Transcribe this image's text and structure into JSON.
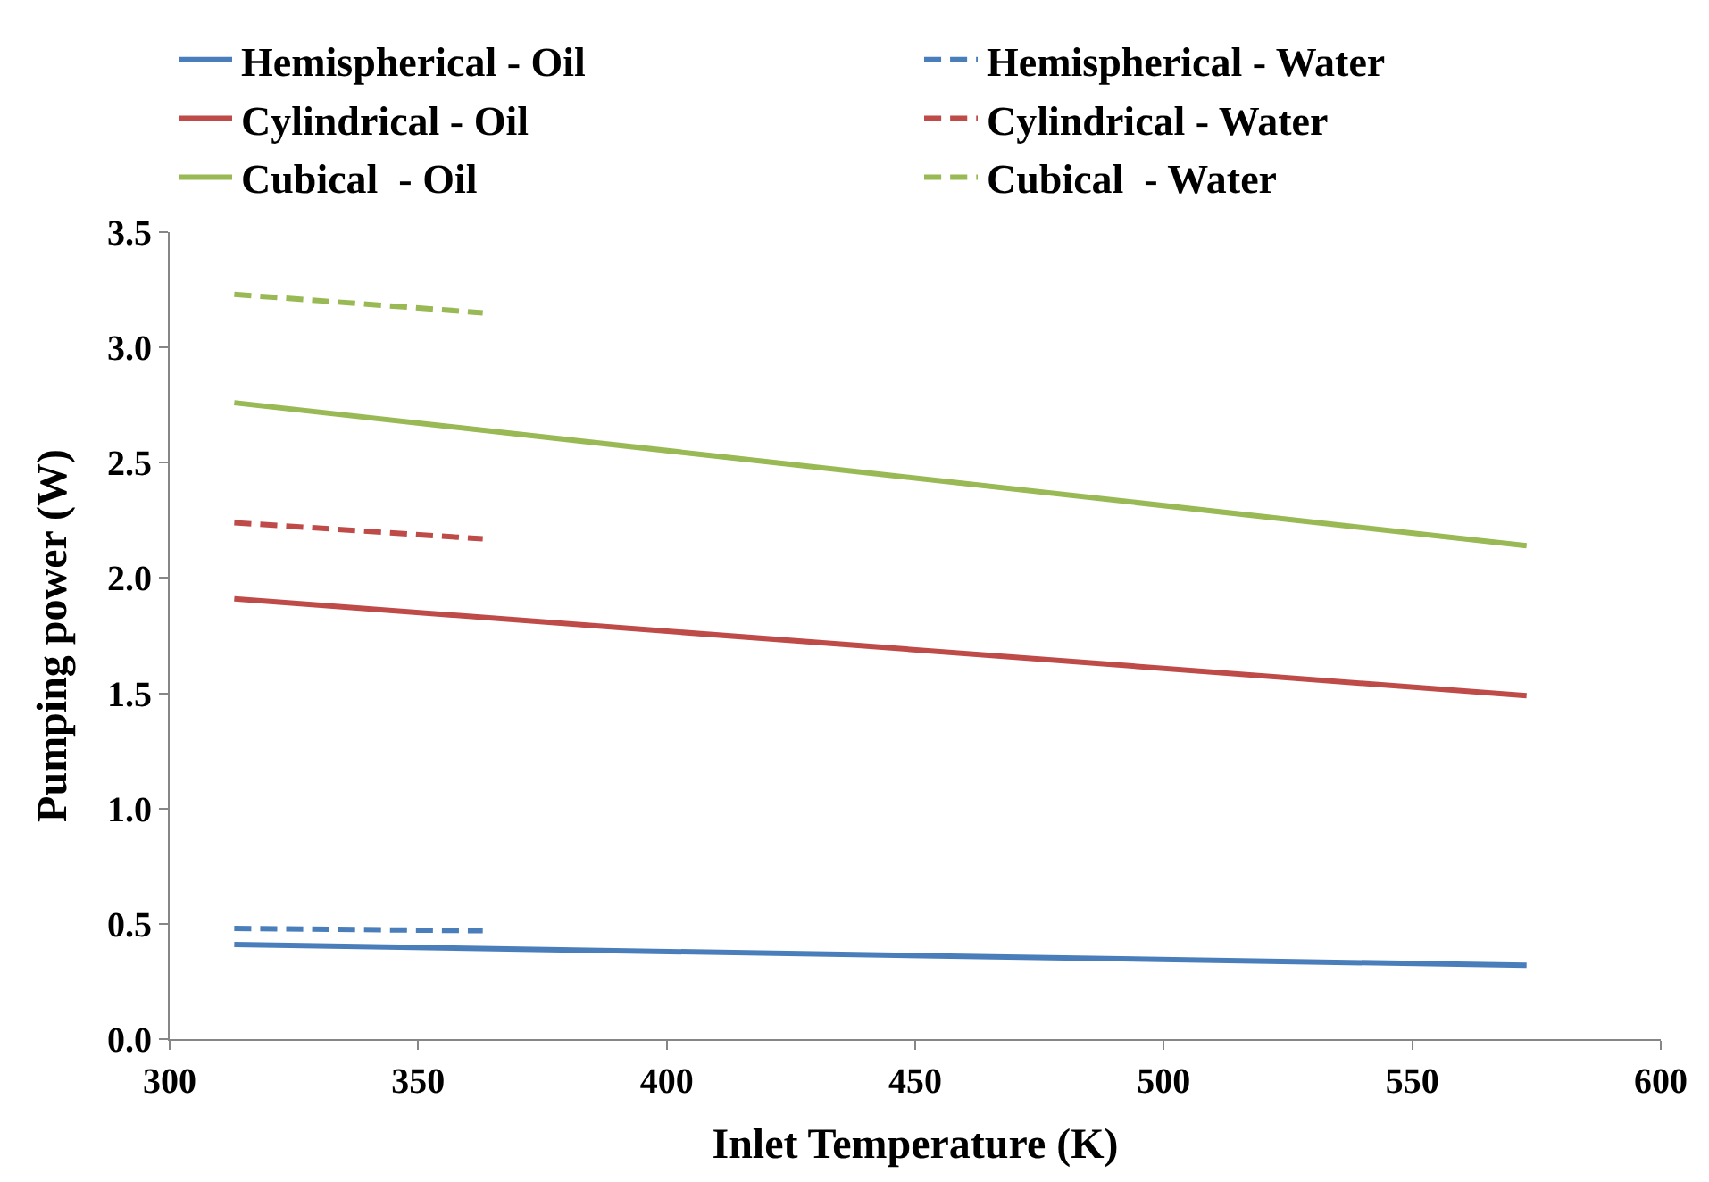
{
  "chart_data": {
    "type": "line",
    "xlabel": "Inlet Temperature (K)",
    "ylabel": "Pumping power (W)",
    "series": [
      {
        "name": "Hemispherical - Oil",
        "color": "#4a7ebb",
        "x": [
          313,
          573
        ],
        "values": [
          0.41,
          0.32
        ],
        "line_style": "solid"
      },
      {
        "name": "Hemispherical - Water",
        "color": "#4a7ebb",
        "x": [
          313,
          363
        ],
        "values": [
          0.48,
          0.47
        ],
        "line_style": "dashed"
      },
      {
        "name": "Cylindrical - Oil",
        "color": "#be4b48",
        "x": [
          313,
          573
        ],
        "values": [
          1.91,
          1.49
        ],
        "line_style": "solid"
      },
      {
        "name": "Cylindrical - Water",
        "color": "#be4b48",
        "x": [
          313,
          363
        ],
        "values": [
          2.24,
          2.17
        ],
        "line_style": "dashed"
      },
      {
        "name": "Cubical  - Oil",
        "color": "#98b954",
        "x": [
          313,
          573
        ],
        "values": [
          2.76,
          2.14
        ],
        "line_style": "solid"
      },
      {
        "name": "Cubical  - Water",
        "color": "#98b954",
        "x": [
          313,
          363
        ],
        "values": [
          3.23,
          3.15
        ],
        "line_style": "dashed"
      }
    ],
    "xlim": [
      300,
      600
    ],
    "xticks": [
      300,
      350,
      400,
      450,
      500,
      550,
      600
    ],
    "ylim": [
      0,
      3.5
    ],
    "yticks": [
      {
        "value": 0,
        "label": "0.0"
      },
      {
        "value": 0.5,
        "label": "0.5"
      },
      {
        "value": 1,
        "label": "1.0"
      },
      {
        "value": 1.5,
        "label": "1.5"
      },
      {
        "value": 2,
        "label": "2.0"
      },
      {
        "value": 2.5,
        "label": "2.5"
      },
      {
        "value": 3,
        "label": "3.0"
      },
      {
        "value": 3.5,
        "label": "3.5"
      }
    ],
    "grid": false,
    "legend": "top",
    "marker": "none"
  }
}
